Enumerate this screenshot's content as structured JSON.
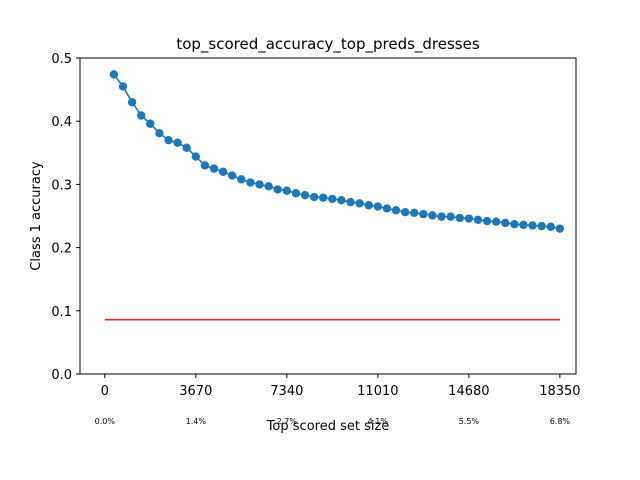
{
  "chart_data": {
    "type": "line",
    "title": "top_scored_accuracy_top_preds_dresses",
    "xlabel": "Top scored set size",
    "ylabel": "Class 1 accuracy",
    "xlim": [
      -1000,
      19000
    ],
    "ylim": [
      0,
      0.5
    ],
    "x_ticks": [
      0,
      3670,
      7340,
      11010,
      14680,
      18350
    ],
    "x_tick_labels": [
      "0",
      "3670",
      "7340",
      "11010",
      "14680",
      "18350"
    ],
    "y_ticks": [
      0.0,
      0.1,
      0.2,
      0.3,
      0.4,
      0.5
    ],
    "y_tick_labels": [
      "0.0",
      "0.1",
      "0.2",
      "0.3",
      "0.4",
      "0.5"
    ],
    "percent_labels": [
      {
        "x": 0,
        "text": "0.0%"
      },
      {
        "x": 3670,
        "text": "1.4%"
      },
      {
        "x": 7340,
        "text": "2.7%"
      },
      {
        "x": 11010,
        "text": "4.1%"
      },
      {
        "x": 14680,
        "text": "5.5%"
      },
      {
        "x": 18350,
        "text": "6.8%"
      }
    ],
    "grid": false,
    "series": [
      {
        "color": "#1f77b4",
        "marker": "circle",
        "x": [
          367,
          734,
          1101,
          1468,
          1835,
          2202,
          2569,
          2936,
          3303,
          3670,
          4037,
          4404,
          4771,
          5138,
          5505,
          5872,
          6239,
          6606,
          6973,
          7340,
          7707,
          8074,
          8441,
          8808,
          9175,
          9542,
          9909,
          10276,
          10643,
          11010,
          11377,
          11744,
          12111,
          12478,
          12845,
          13212,
          13579,
          13946,
          14313,
          14680,
          15047,
          15414,
          15781,
          16148,
          16515,
          16882,
          17249,
          17616,
          17983,
          18350
        ],
        "values": [
          0.474,
          0.455,
          0.43,
          0.409,
          0.396,
          0.381,
          0.37,
          0.366,
          0.358,
          0.344,
          0.33,
          0.325,
          0.32,
          0.314,
          0.308,
          0.303,
          0.3,
          0.297,
          0.292,
          0.29,
          0.286,
          0.283,
          0.28,
          0.279,
          0.277,
          0.275,
          0.272,
          0.27,
          0.267,
          0.265,
          0.262,
          0.259,
          0.256,
          0.255,
          0.253,
          0.251,
          0.249,
          0.249,
          0.247,
          0.246,
          0.244,
          0.242,
          0.241,
          0.239,
          0.237,
          0.236,
          0.235,
          0.234,
          0.233,
          0.23
        ]
      },
      {
        "color": "#d62728",
        "marker": "none",
        "x": [
          0,
          18350
        ],
        "values": [
          0.086,
          0.086
        ]
      }
    ]
  }
}
